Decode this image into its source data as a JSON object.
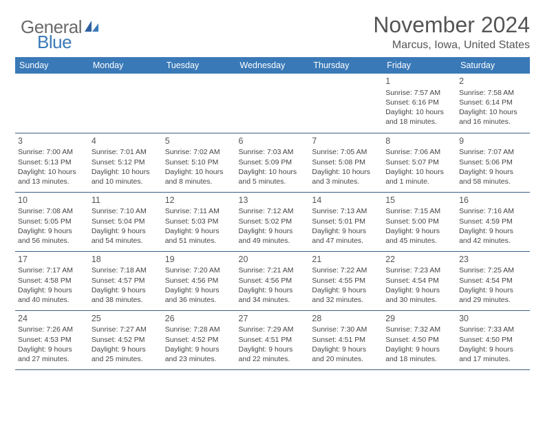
{
  "logo": {
    "part1": "General",
    "part2": "Blue"
  },
  "title": "November 2024",
  "location": "Marcus, Iowa, United States",
  "colors": {
    "header_bg": "#3a79b7",
    "header_text": "#ffffff",
    "row_border": "#3a5e82",
    "logo_gray": "#6a6a6a",
    "logo_blue": "#3a79b7",
    "body_text": "#444444",
    "title_text": "#555555"
  },
  "weekdays": [
    "Sunday",
    "Monday",
    "Tuesday",
    "Wednesday",
    "Thursday",
    "Friday",
    "Saturday"
  ],
  "weeks": [
    [
      null,
      null,
      null,
      null,
      null,
      {
        "n": "1",
        "sr": "Sunrise: 7:57 AM",
        "ss": "Sunset: 6:16 PM",
        "dl": "Daylight: 10 hours and 18 minutes."
      },
      {
        "n": "2",
        "sr": "Sunrise: 7:58 AM",
        "ss": "Sunset: 6:14 PM",
        "dl": "Daylight: 10 hours and 16 minutes."
      }
    ],
    [
      {
        "n": "3",
        "sr": "Sunrise: 7:00 AM",
        "ss": "Sunset: 5:13 PM",
        "dl": "Daylight: 10 hours and 13 minutes."
      },
      {
        "n": "4",
        "sr": "Sunrise: 7:01 AM",
        "ss": "Sunset: 5:12 PM",
        "dl": "Daylight: 10 hours and 10 minutes."
      },
      {
        "n": "5",
        "sr": "Sunrise: 7:02 AM",
        "ss": "Sunset: 5:10 PM",
        "dl": "Daylight: 10 hours and 8 minutes."
      },
      {
        "n": "6",
        "sr": "Sunrise: 7:03 AM",
        "ss": "Sunset: 5:09 PM",
        "dl": "Daylight: 10 hours and 5 minutes."
      },
      {
        "n": "7",
        "sr": "Sunrise: 7:05 AM",
        "ss": "Sunset: 5:08 PM",
        "dl": "Daylight: 10 hours and 3 minutes."
      },
      {
        "n": "8",
        "sr": "Sunrise: 7:06 AM",
        "ss": "Sunset: 5:07 PM",
        "dl": "Daylight: 10 hours and 1 minute."
      },
      {
        "n": "9",
        "sr": "Sunrise: 7:07 AM",
        "ss": "Sunset: 5:06 PM",
        "dl": "Daylight: 9 hours and 58 minutes."
      }
    ],
    [
      {
        "n": "10",
        "sr": "Sunrise: 7:08 AM",
        "ss": "Sunset: 5:05 PM",
        "dl": "Daylight: 9 hours and 56 minutes."
      },
      {
        "n": "11",
        "sr": "Sunrise: 7:10 AM",
        "ss": "Sunset: 5:04 PM",
        "dl": "Daylight: 9 hours and 54 minutes."
      },
      {
        "n": "12",
        "sr": "Sunrise: 7:11 AM",
        "ss": "Sunset: 5:03 PM",
        "dl": "Daylight: 9 hours and 51 minutes."
      },
      {
        "n": "13",
        "sr": "Sunrise: 7:12 AM",
        "ss": "Sunset: 5:02 PM",
        "dl": "Daylight: 9 hours and 49 minutes."
      },
      {
        "n": "14",
        "sr": "Sunrise: 7:13 AM",
        "ss": "Sunset: 5:01 PM",
        "dl": "Daylight: 9 hours and 47 minutes."
      },
      {
        "n": "15",
        "sr": "Sunrise: 7:15 AM",
        "ss": "Sunset: 5:00 PM",
        "dl": "Daylight: 9 hours and 45 minutes."
      },
      {
        "n": "16",
        "sr": "Sunrise: 7:16 AM",
        "ss": "Sunset: 4:59 PM",
        "dl": "Daylight: 9 hours and 42 minutes."
      }
    ],
    [
      {
        "n": "17",
        "sr": "Sunrise: 7:17 AM",
        "ss": "Sunset: 4:58 PM",
        "dl": "Daylight: 9 hours and 40 minutes."
      },
      {
        "n": "18",
        "sr": "Sunrise: 7:18 AM",
        "ss": "Sunset: 4:57 PM",
        "dl": "Daylight: 9 hours and 38 minutes."
      },
      {
        "n": "19",
        "sr": "Sunrise: 7:20 AM",
        "ss": "Sunset: 4:56 PM",
        "dl": "Daylight: 9 hours and 36 minutes."
      },
      {
        "n": "20",
        "sr": "Sunrise: 7:21 AM",
        "ss": "Sunset: 4:56 PM",
        "dl": "Daylight: 9 hours and 34 minutes."
      },
      {
        "n": "21",
        "sr": "Sunrise: 7:22 AM",
        "ss": "Sunset: 4:55 PM",
        "dl": "Daylight: 9 hours and 32 minutes."
      },
      {
        "n": "22",
        "sr": "Sunrise: 7:23 AM",
        "ss": "Sunset: 4:54 PM",
        "dl": "Daylight: 9 hours and 30 minutes."
      },
      {
        "n": "23",
        "sr": "Sunrise: 7:25 AM",
        "ss": "Sunset: 4:54 PM",
        "dl": "Daylight: 9 hours and 29 minutes."
      }
    ],
    [
      {
        "n": "24",
        "sr": "Sunrise: 7:26 AM",
        "ss": "Sunset: 4:53 PM",
        "dl": "Daylight: 9 hours and 27 minutes."
      },
      {
        "n": "25",
        "sr": "Sunrise: 7:27 AM",
        "ss": "Sunset: 4:52 PM",
        "dl": "Daylight: 9 hours and 25 minutes."
      },
      {
        "n": "26",
        "sr": "Sunrise: 7:28 AM",
        "ss": "Sunset: 4:52 PM",
        "dl": "Daylight: 9 hours and 23 minutes."
      },
      {
        "n": "27",
        "sr": "Sunrise: 7:29 AM",
        "ss": "Sunset: 4:51 PM",
        "dl": "Daylight: 9 hours and 22 minutes."
      },
      {
        "n": "28",
        "sr": "Sunrise: 7:30 AM",
        "ss": "Sunset: 4:51 PM",
        "dl": "Daylight: 9 hours and 20 minutes."
      },
      {
        "n": "29",
        "sr": "Sunrise: 7:32 AM",
        "ss": "Sunset: 4:50 PM",
        "dl": "Daylight: 9 hours and 18 minutes."
      },
      {
        "n": "30",
        "sr": "Sunrise: 7:33 AM",
        "ss": "Sunset: 4:50 PM",
        "dl": "Daylight: 9 hours and 17 minutes."
      }
    ]
  ]
}
